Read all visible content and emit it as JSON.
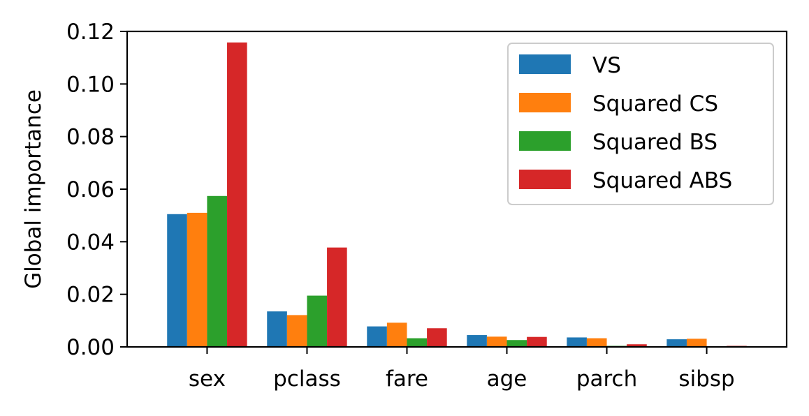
{
  "chart_data": {
    "type": "bar",
    "title": "",
    "xlabel": "",
    "ylabel": "Global importance",
    "ylim": [
      0,
      0.12
    ],
    "yticks": [
      "0.00",
      "0.02",
      "0.04",
      "0.06",
      "0.08",
      "0.10",
      "0.12"
    ],
    "categories": [
      "sex",
      "pclass",
      "fare",
      "age",
      "parch",
      "sibsp"
    ],
    "series": [
      {
        "name": "VS",
        "color": "#1f77b4",
        "values": [
          0.0505,
          0.0135,
          0.0078,
          0.0045,
          0.0036,
          0.0029
        ]
      },
      {
        "name": "Squared CS",
        "color": "#ff7f0e",
        "values": [
          0.051,
          0.0121,
          0.0092,
          0.0039,
          0.0033,
          0.0031
        ]
      },
      {
        "name": "Squared BS",
        "color": "#2ca02c",
        "values": [
          0.0574,
          0.0195,
          0.0033,
          0.0026,
          0.0004,
          0.0001
        ]
      },
      {
        "name": "Squared ABS",
        "color": "#d62728",
        "values": [
          0.1158,
          0.0378,
          0.0071,
          0.0038,
          0.001,
          0.0004
        ]
      }
    ],
    "legend": {
      "placement": "top-right"
    },
    "grid": false
  }
}
